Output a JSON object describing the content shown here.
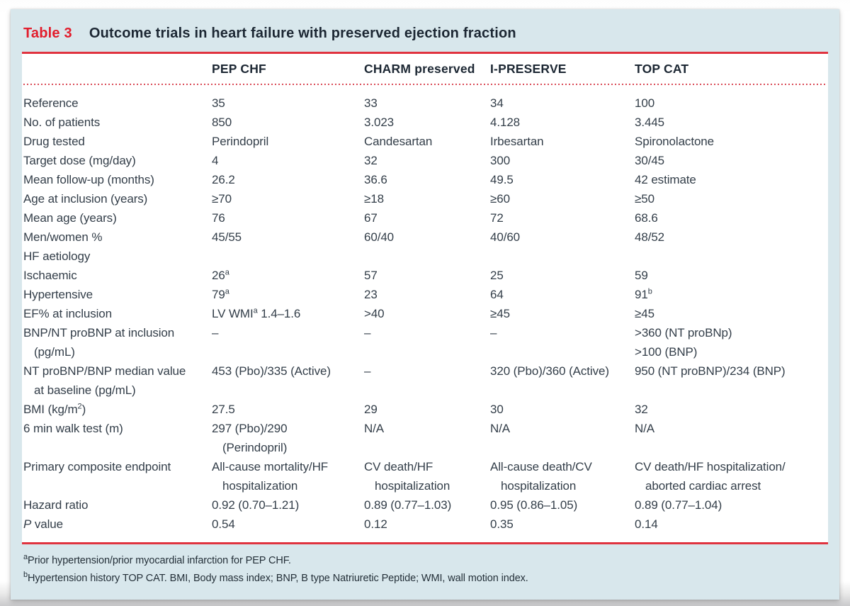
{
  "title": {
    "tag": "Table 3",
    "text": "Outcome trials in heart failure with preserved ejection fraction"
  },
  "colors": {
    "accent_red": "#e21d2c",
    "rule_red": "#e0333f",
    "dot_red": "#d94a56",
    "card_bg": "#d8e7ec",
    "text_dark": "#1c2733",
    "text_body": "#333e49"
  },
  "table": {
    "columns": [
      "PEP CHF",
      "CHARM preserved",
      "I-PRESERVE",
      "TOP CAT"
    ],
    "rows": [
      {
        "label": [
          "Reference"
        ],
        "values": [
          [
            "35"
          ],
          [
            "33"
          ],
          [
            "34"
          ],
          [
            "100"
          ]
        ]
      },
      {
        "label": [
          "No. of patients"
        ],
        "values": [
          [
            "850"
          ],
          [
            "3.023"
          ],
          [
            "4.128"
          ],
          [
            "3.445"
          ]
        ]
      },
      {
        "label": [
          "Drug tested"
        ],
        "values": [
          [
            "Perindopril"
          ],
          [
            "Candesartan"
          ],
          [
            "Irbesartan"
          ],
          [
            "Spironolactone"
          ]
        ]
      },
      {
        "label": [
          "Target dose (mg/day)"
        ],
        "values": [
          [
            "4"
          ],
          [
            "32"
          ],
          [
            "300"
          ],
          [
            "30/45"
          ]
        ]
      },
      {
        "label": [
          "Mean follow-up (months)"
        ],
        "values": [
          [
            "26.2"
          ],
          [
            "36.6"
          ],
          [
            "49.5"
          ],
          [
            "42 estimate"
          ]
        ]
      },
      {
        "label": [
          "Age at inclusion (years)"
        ],
        "values": [
          [
            "≥70"
          ],
          [
            "≥18"
          ],
          [
            "≥60"
          ],
          [
            "≥50"
          ]
        ]
      },
      {
        "label": [
          "Mean age (years)"
        ],
        "values": [
          [
            "76"
          ],
          [
            "67"
          ],
          [
            "72"
          ],
          [
            "68.6"
          ]
        ]
      },
      {
        "label": [
          "Men/women %"
        ],
        "values": [
          [
            "45/55"
          ],
          [
            "60/40"
          ],
          [
            "40/60"
          ],
          [
            "48/52"
          ]
        ]
      },
      {
        "label": [
          "HF aetiology"
        ],
        "values": [
          [
            ""
          ],
          [
            ""
          ],
          [
            ""
          ],
          [
            ""
          ]
        ]
      },
      {
        "label": [
          "Ischaemic"
        ],
        "values": [
          [
            "26[a]"
          ],
          [
            "57"
          ],
          [
            "25"
          ],
          [
            "59"
          ]
        ]
      },
      {
        "label": [
          "Hypertensive"
        ],
        "values": [
          [
            "79[a]"
          ],
          [
            "23"
          ],
          [
            "64"
          ],
          [
            "91[b]"
          ]
        ]
      },
      {
        "label": [
          "EF% at inclusion"
        ],
        "values": [
          [
            "LV WMI[a] 1.4–1.6"
          ],
          [
            ">40"
          ],
          [
            "≥45"
          ],
          [
            "≥45"
          ]
        ]
      },
      {
        "label": [
          "BNP/NT proBNP at inclusion",
          "~(pg/mL)"
        ],
        "values": [
          [
            "–"
          ],
          [
            "–"
          ],
          [
            "–"
          ],
          [
            ">360 (NT proBNp)",
            ">100 (BNP)"
          ]
        ]
      },
      {
        "label": [
          "NT proBNP/BNP median value",
          "~at baseline (pg/mL)"
        ],
        "values": [
          [
            "453 (Pbo)/335 (Active)"
          ],
          [
            "–"
          ],
          [
            "320 (Pbo)/360 (Active)"
          ],
          [
            "950 (NT proBNP)/234 (BNP)"
          ]
        ]
      },
      {
        "label": [
          "BMI (kg/m[2])"
        ],
        "values": [
          [
            "27.5"
          ],
          [
            "29"
          ],
          [
            "30"
          ],
          [
            "32"
          ]
        ]
      },
      {
        "label": [
          "6 min walk test (m)"
        ],
        "values": [
          [
            "297 (Pbo)/290",
            "~(Perindopril)"
          ],
          [
            "N/A"
          ],
          [
            "N/A"
          ],
          [
            "N/A"
          ]
        ]
      },
      {
        "label": [
          "Primary composite endpoint"
        ],
        "values": [
          [
            "All-cause mortality/HF",
            "~hospitalization"
          ],
          [
            "CV death/HF",
            "~hospitalization"
          ],
          [
            "All-cause death/CV",
            "~hospitalization"
          ],
          [
            "CV death/HF hospitalization/",
            "~aborted cardiac arrest"
          ]
        ]
      },
      {
        "label": [
          "Hazard ratio"
        ],
        "values": [
          [
            "0.92 (0.70–1.21)"
          ],
          [
            "0.89 (0.77–1.03)"
          ],
          [
            "0.95 (0.86–1.05)"
          ],
          [
            "0.89 (0.77–1.04)"
          ]
        ]
      },
      {
        "label": [
          "*P* value"
        ],
        "values": [
          [
            "0.54"
          ],
          [
            "0.12"
          ],
          [
            "0.35"
          ],
          [
            "0.14"
          ]
        ]
      }
    ]
  },
  "footnotes": [
    "[a]Prior hypertension/prior myocardial infarction for PEP CHF.",
    "[b]Hypertension history TOP CAT. BMI, Body mass index; BNP, B type Natriuretic Peptide; WMI, wall motion index."
  ]
}
